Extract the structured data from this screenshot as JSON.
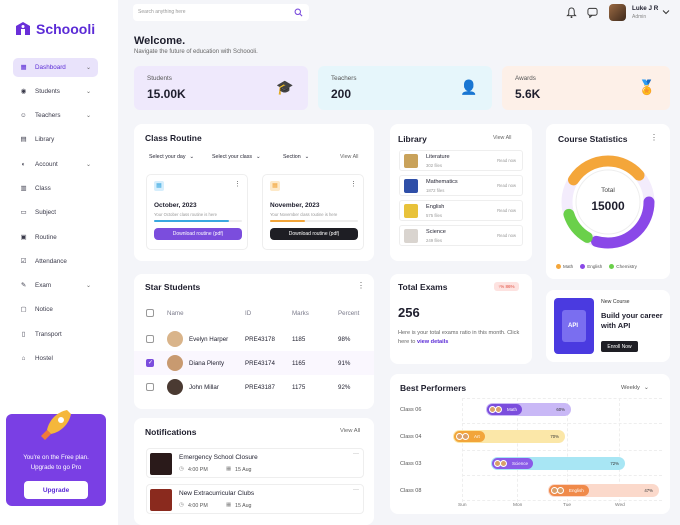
{
  "brand": {
    "name": "Schoooli"
  },
  "search": {
    "placeholder": "Search anything here"
  },
  "user": {
    "name": "Luke J R",
    "role": "Admin"
  },
  "sidebar": {
    "items": [
      {
        "label": "Dashboard",
        "icon": "dashboard-icon",
        "active": true,
        "has_chevron": true
      },
      {
        "label": "Students",
        "icon": "students-icon",
        "has_chevron": true
      },
      {
        "label": "Teachers",
        "icon": "teachers-icon",
        "has_chevron": true
      },
      {
        "label": "Library",
        "icon": "library-icon"
      },
      {
        "label": "Account",
        "icon": "account-icon",
        "has_chevron": true
      },
      {
        "label": "Class",
        "icon": "class-icon"
      },
      {
        "label": "Subject",
        "icon": "subject-icon"
      },
      {
        "label": "Routine",
        "icon": "routine-icon"
      },
      {
        "label": "Attendance",
        "icon": "attendance-icon"
      },
      {
        "label": "Exam",
        "icon": "exam-icon",
        "has_chevron": true
      },
      {
        "label": "Notice",
        "icon": "notice-icon"
      },
      {
        "label": "Transport",
        "icon": "transport-icon"
      },
      {
        "label": "Hostel",
        "icon": "hostel-icon"
      }
    ],
    "promo": {
      "line1": "You're on the Free plan.",
      "line2": "Upgrade to go Pro",
      "button": "Upgrade"
    }
  },
  "welcome": {
    "title": "Welcome.",
    "subtitle": "Navigate the future of education with Schoooli."
  },
  "stats": [
    {
      "label": "Students",
      "value": "15.00K",
      "bg": "#efe9fc",
      "icon": "graduation-icon"
    },
    {
      "label": "Teachers",
      "value": "200",
      "bg": "#e6f6fb",
      "icon": "teacher-icon"
    },
    {
      "label": "Awards",
      "value": "5.6K",
      "bg": "#fdf0e8",
      "icon": "medal-icon"
    }
  ],
  "routine": {
    "title": "Class Routine",
    "filters": [
      "Select your day",
      "Select your class",
      "Section"
    ],
    "view_all": "View All",
    "cards": [
      {
        "month": "October, 2023",
        "desc": "Your October class routine is here",
        "button": "Download routine (pdf)",
        "progress": 0.85,
        "bar_color": "#3aa8e0",
        "btn_color": "#7b4ddd"
      },
      {
        "month": "November, 2023",
        "desc": "Your November class routine is here",
        "button": "Download routine (pdf)",
        "progress": 0.4,
        "bar_color": "#f2a53a",
        "btn_color": "#1e1e24"
      }
    ]
  },
  "library": {
    "title": "Library",
    "view_all": "View All",
    "items": [
      {
        "name": "Literature",
        "files": "302 files",
        "action": "Read now"
      },
      {
        "name": "Mathematics",
        "files": "1872 files",
        "action": "Read now"
      },
      {
        "name": "English",
        "files": "575 files",
        "action": "Read now"
      },
      {
        "name": "Science",
        "files": "249 files",
        "action": "Read now"
      }
    ]
  },
  "course_stats": {
    "title": "Course Statistics",
    "center_label": "Total",
    "center_value": "15000",
    "legend": [
      {
        "name": "Math",
        "color": "#f4a63a"
      },
      {
        "name": "English",
        "color": "#8a48e8"
      },
      {
        "name": "Chemistry",
        "color": "#6ad04a"
      }
    ]
  },
  "students": {
    "title": "Star Students",
    "columns": [
      "Name",
      "ID",
      "Marks",
      "Percent"
    ],
    "rows": [
      {
        "name": "Evelyn Harper",
        "id": "PRE43178",
        "marks": "1185",
        "percent": "98%",
        "checked": false
      },
      {
        "name": "Diana Plenty",
        "id": "PRE43174",
        "marks": "1165",
        "percent": "91%",
        "checked": true
      },
      {
        "name": "John Millar",
        "id": "PRE43187",
        "marks": "1175",
        "percent": "92%",
        "checked": false
      }
    ]
  },
  "exams": {
    "title": "Total Exams",
    "badge": "↑% 86%",
    "value": "256",
    "desc": "Here is your total exams ratio in this month. Click here to",
    "link": "view details"
  },
  "new_course": {
    "tag": "New Course",
    "title": "Build your career with API",
    "button": "Enroll Now",
    "art_label": "API"
  },
  "notifications": {
    "title": "Notifications",
    "view_all": "View All",
    "items": [
      {
        "title": "Emergency School Closure",
        "time": "4:00 PM",
        "date": "15 Aug"
      },
      {
        "title": "New Extracurricular Clubs",
        "time": "4:00 PM",
        "date": "15 Aug"
      }
    ]
  },
  "performers": {
    "title": "Best Performers",
    "filter": "Weekly",
    "rows": [
      {
        "label": "Class 06",
        "subject": "Math",
        "percent": "60%",
        "color": "#c9b8f6",
        "dark": "#7b4ddd"
      },
      {
        "label": "Class 04",
        "subject": "Art",
        "percent": "70%",
        "color": "#fbe7a8",
        "dark": "#f2a53a"
      },
      {
        "label": "Class 03",
        "subject": "Science",
        "percent": "72%",
        "color": "#a8e6f4",
        "dark": "#8a5be8"
      },
      {
        "label": "Class 08",
        "subject": "English",
        "percent": "47%",
        "color": "#fbd9cb",
        "dark": "#f08a4a"
      }
    ],
    "days": [
      "Sun",
      "Mon",
      "Tue",
      "Wed"
    ]
  }
}
